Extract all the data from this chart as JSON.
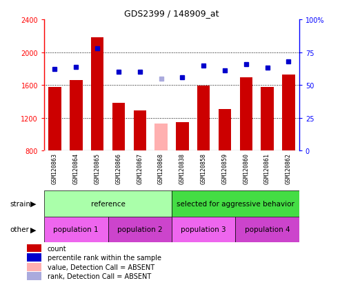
{
  "title": "GDS2399 / 148909_at",
  "samples": [
    "GSM120863",
    "GSM120864",
    "GSM120865",
    "GSM120866",
    "GSM120867",
    "GSM120868",
    "GSM120838",
    "GSM120858",
    "GSM120859",
    "GSM120860",
    "GSM120861",
    "GSM120862"
  ],
  "counts": [
    1575,
    1660,
    2180,
    1380,
    1290,
    null,
    1150,
    1590,
    1310,
    1690,
    1580,
    1730
  ],
  "absent_count": [
    null,
    null,
    null,
    null,
    null,
    1130,
    null,
    null,
    null,
    null,
    null,
    null
  ],
  "percentile_ranks": [
    62,
    64,
    78,
    60,
    60,
    null,
    56,
    65,
    61,
    66,
    63,
    68
  ],
  "absent_rank": [
    null,
    null,
    null,
    null,
    null,
    55,
    null,
    null,
    null,
    null,
    null,
    null
  ],
  "ylim_left": [
    800,
    2400
  ],
  "ylim_right": [
    0,
    100
  ],
  "yticks_left": [
    800,
    1200,
    1600,
    2000,
    2400
  ],
  "yticks_right": [
    0,
    25,
    50,
    75,
    100
  ],
  "bar_color": "#cc0000",
  "absent_bar_color": "#ffb0b0",
  "dot_color": "#0000cc",
  "absent_dot_color": "#aaaadd",
  "strain_groups": [
    {
      "label": "reference",
      "start": 0,
      "end": 5,
      "color": "#aaffaa"
    },
    {
      "label": "selected for aggressive behavior",
      "start": 6,
      "end": 11,
      "color": "#44dd44"
    }
  ],
  "population_groups": [
    {
      "label": "population 1",
      "start": 0,
      "end": 2,
      "color": "#ee66ee"
    },
    {
      "label": "population 2",
      "start": 3,
      "end": 5,
      "color": "#cc44cc"
    },
    {
      "label": "population 3",
      "start": 6,
      "end": 8,
      "color": "#ee66ee"
    },
    {
      "label": "population 4",
      "start": 9,
      "end": 11,
      "color": "#cc44cc"
    }
  ],
  "legend_items": [
    {
      "label": "count",
      "color": "#cc0000"
    },
    {
      "label": "percentile rank within the sample",
      "color": "#0000cc"
    },
    {
      "label": "value, Detection Call = ABSENT",
      "color": "#ffb0b0"
    },
    {
      "label": "rank, Detection Call = ABSENT",
      "color": "#aaaadd"
    }
  ],
  "plot_bg_color": "#ffffff",
  "tick_area_color": "#cccccc",
  "grid_color": "#000000",
  "border_color": "#000000"
}
